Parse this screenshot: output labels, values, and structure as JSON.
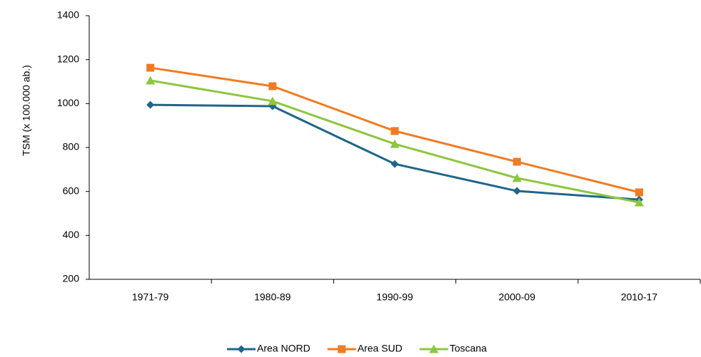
{
  "chart_data": {
    "type": "line",
    "y_label": "TSM (x 100.000 ab.)",
    "categories": [
      "1971-79",
      "1980-89",
      "1990-99",
      "2000-09",
      "2010-17"
    ],
    "series": [
      {
        "name": "Area NORD",
        "color": "#1f6688",
        "marker": "diamond",
        "values": [
          994,
          988,
          725,
          602,
          563
        ]
      },
      {
        "name": "Area SUD",
        "color": "#f07b22",
        "marker": "square",
        "values": [
          1163,
          1079,
          875,
          735,
          596
        ]
      },
      {
        "name": "Toscana",
        "color": "#8dc63f",
        "marker": "triangle",
        "values": [
          1105,
          1011,
          816,
          661,
          550
        ]
      }
    ],
    "ylim": [
      200,
      1400
    ],
    "yticks": [
      200,
      400,
      600,
      800,
      1000,
      1200,
      1400
    ],
    "grid": false,
    "legend": "bottom"
  }
}
